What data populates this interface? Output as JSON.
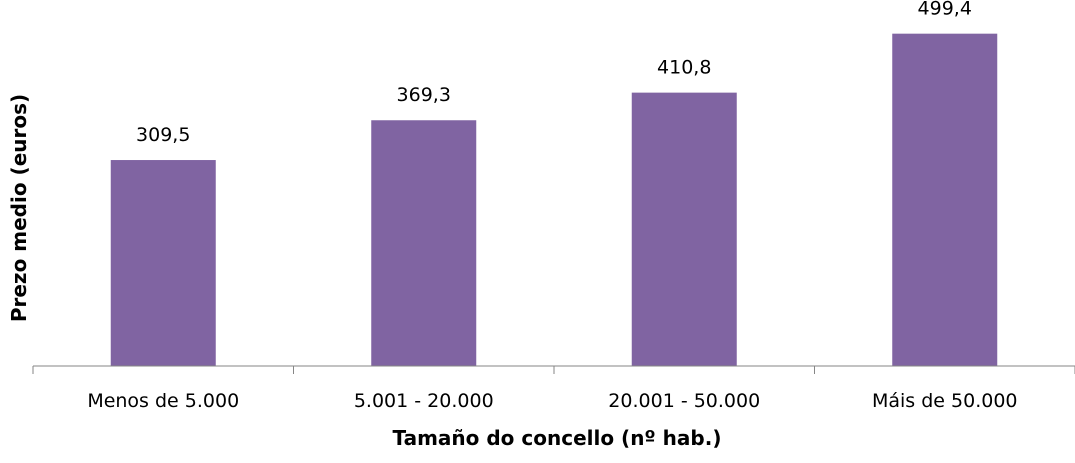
{
  "chart_data": {
    "type": "bar",
    "title": "",
    "xlabel": "Tamaño do concello (nº hab.)",
    "ylabel": "Prezo medio (euros)",
    "categories": [
      "Menos de 5.000",
      "5.001 - 20.000",
      "20.001 - 50.000",
      "Máis de 50.000"
    ],
    "values": [
      309.5,
      369.3,
      410.8,
      499.4
    ],
    "data_labels": [
      "309,5",
      "369,3",
      "410,8",
      "499,4"
    ],
    "ylim": [
      0,
      550
    ],
    "grid": false,
    "legend": "none",
    "bar_color": "#8064A2"
  }
}
